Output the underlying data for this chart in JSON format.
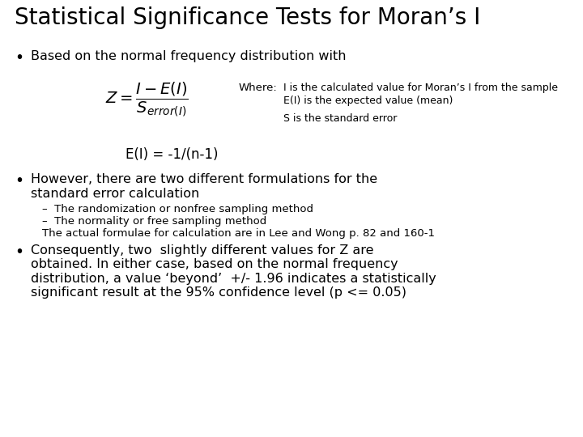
{
  "title": "Statistical Significance Tests for Moran’s I",
  "bg_color": "#ffffff",
  "title_fontsize": 20,
  "bullet1": "Based on the normal frequency distribution with",
  "formula_label": "Where:",
  "formula_note1": "I is the calculated value for Moran’s I from the sample",
  "formula_note2": "E(I) is the expected value (mean)",
  "formula_note3": "S is the standard error",
  "ei_formula": "E(I) = -1/(n-1)",
  "bullet2_line1": "However, there are two different formulations for the",
  "bullet2_line2": "standard error calculation",
  "sub1": "–  The randomization or nonfree sampling method",
  "sub2": "–  The normality or free sampling method",
  "note": "The actual formulae for calculation are in Lee and Wong p. 82 and 160-1",
  "bullet3": "Consequently, two  slightly different values for Z are\nobtained. In either case, based on the normal frequency\ndistribution, a value ‘beyond’  +/- 1.96 indicates a statistically\nsignificant result at the 95% confidence level (p <= 0.05)",
  "text_color": "#000000",
  "body_fontsize": 11.5,
  "small_fontsize": 9.5,
  "formula_fontsize": 13
}
